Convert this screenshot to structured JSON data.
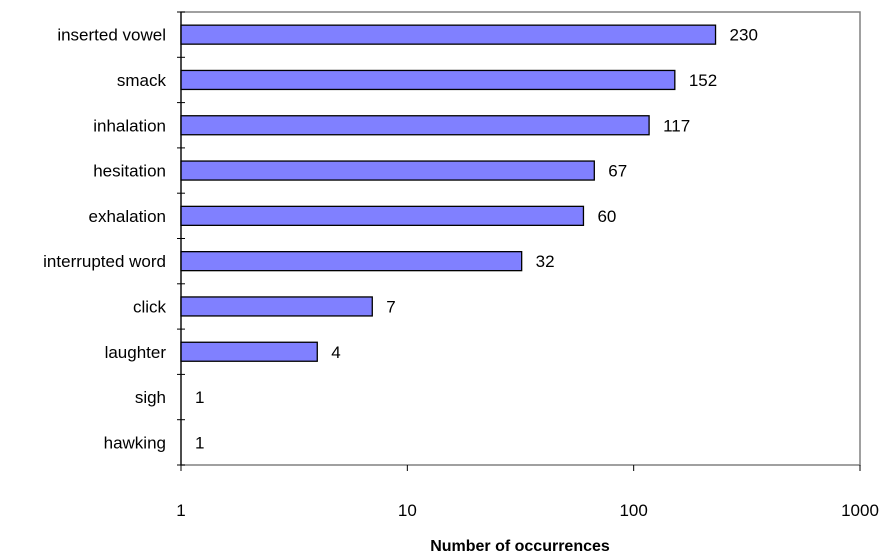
{
  "chart_data": {
    "type": "bar",
    "orientation": "horizontal",
    "x_scale": "log",
    "categories": [
      "inserted vowel",
      "smack",
      "inhalation",
      "hesitation",
      "exhalation",
      "interrupted word",
      "click",
      "laughter",
      "sigh",
      "hawking"
    ],
    "values": [
      230,
      152,
      117,
      67,
      60,
      32,
      7,
      4,
      1,
      1
    ],
    "xlabel": "Number of occurrences",
    "ylabel": "",
    "title": "",
    "xlim": [
      1,
      1000
    ],
    "x_ticks": [
      "1",
      "10",
      "100",
      "1000"
    ],
    "grid": false,
    "legend": "none",
    "colors": {
      "bar_fill": "#8080ff",
      "bar_stroke": "#000000",
      "frame": "#808080",
      "axis": "#000000"
    }
  }
}
